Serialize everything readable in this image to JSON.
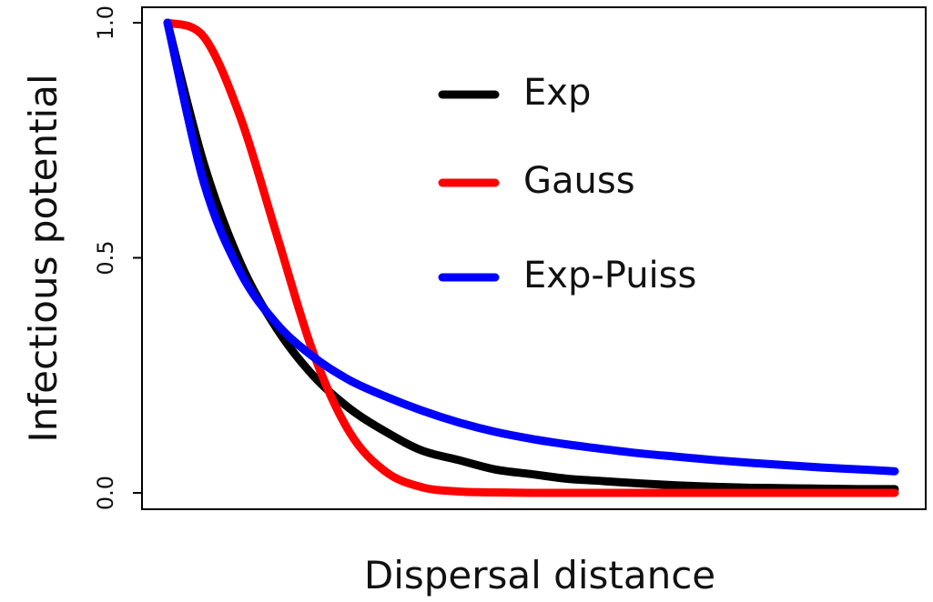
{
  "chart_data": {
    "type": "line",
    "title": "",
    "xlabel": "Dispersal distance",
    "ylabel": "Infectious potential",
    "xlim": [
      0,
      1
    ],
    "ylim": [
      0,
      1
    ],
    "x_ticks": [],
    "y_ticks": [
      {
        "value": 0,
        "label": "0.0"
      },
      {
        "value": 0.5,
        "label": "0.5"
      },
      {
        "value": 1,
        "label": "1.0"
      }
    ],
    "grid": false,
    "legend_position": "top-center",
    "x": [
      0,
      0.05,
      0.1,
      0.15,
      0.2,
      0.25,
      0.3,
      0.35,
      0.4,
      0.45,
      0.5,
      0.55,
      0.6,
      0.65,
      0.7,
      0.75,
      0.8,
      0.85,
      0.9,
      0.95,
      1.0
    ],
    "series": [
      {
        "name": "Exp",
        "color": "#000000",
        "values": [
          1.0,
          0.7,
          0.49,
          0.35,
          0.25,
          0.18,
          0.13,
          0.09,
          0.07,
          0.05,
          0.04,
          0.03,
          0.025,
          0.02,
          0.016,
          0.013,
          0.011,
          0.01,
          0.009,
          0.008,
          0.008
        ]
      },
      {
        "name": "Gauss",
        "color": "#ff0000",
        "values": [
          1.0,
          0.97,
          0.8,
          0.55,
          0.3,
          0.13,
          0.045,
          0.012,
          0.003,
          0.001,
          0.0,
          0.0,
          0.0,
          0.0,
          0.0,
          0.0,
          0.0,
          0.0,
          0.0,
          0.0,
          0.0
        ]
      },
      {
        "name": "Exp-Puiss",
        "color": "#0000ff",
        "values": [
          1.0,
          0.66,
          0.47,
          0.36,
          0.29,
          0.24,
          0.205,
          0.175,
          0.15,
          0.13,
          0.115,
          0.103,
          0.093,
          0.084,
          0.077,
          0.07,
          0.064,
          0.059,
          0.054,
          0.05,
          0.046
        ]
      }
    ]
  }
}
